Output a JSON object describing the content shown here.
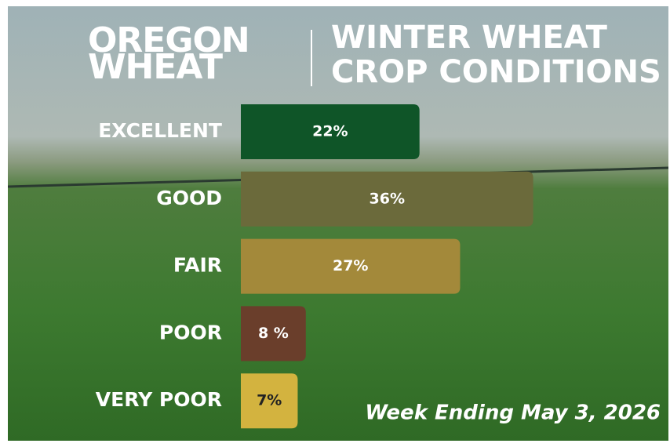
{
  "chart_data": {
    "type": "hbar",
    "logo_lines": [
      "OREGON",
      "WHEAT"
    ],
    "title_lines": [
      "WINTER WHEAT",
      "CROP CONDITIONS"
    ],
    "categories": [
      "EXCELLENT",
      "GOOD",
      "FAIR",
      "POOR",
      "VERY POOR"
    ],
    "values": [
      22,
      36,
      27,
      8,
      7
    ],
    "value_labels": [
      "22%",
      "36%",
      "27%",
      "8 %",
      "7%"
    ],
    "colors": [
      "#0f5528",
      "#6b6a3b",
      "#a3893a",
      "#6a3e2b",
      "#d3b33f"
    ],
    "annotation": "Week Ending May 3, 2026"
  }
}
